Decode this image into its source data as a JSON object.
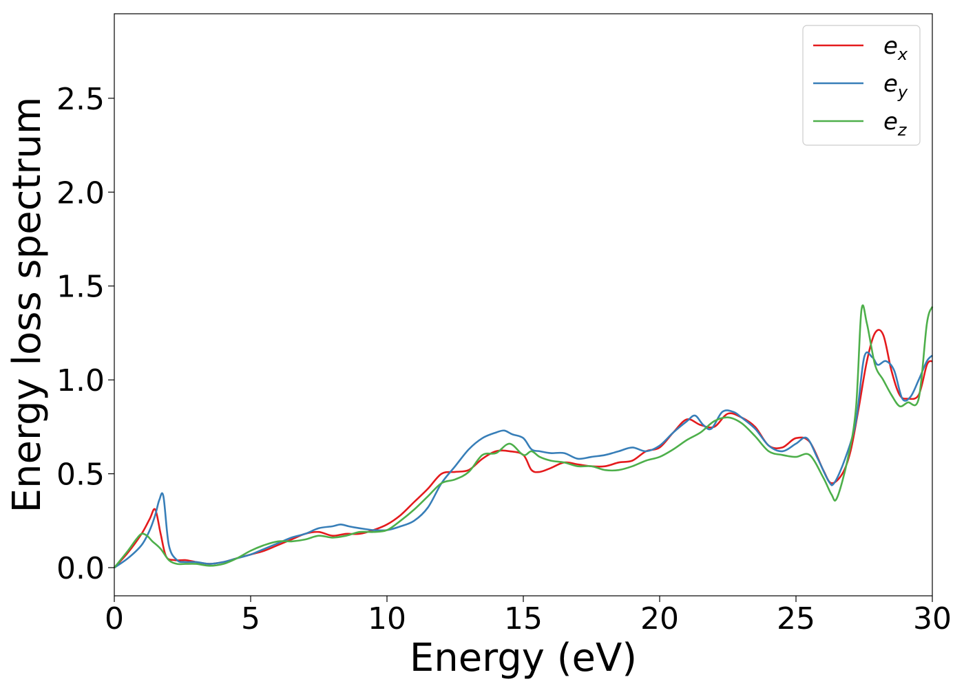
{
  "chart_data": {
    "type": "line",
    "title": "",
    "xlabel": "Energy (eV)",
    "ylabel": "Energy loss spectrum",
    "xlim": [
      0,
      30
    ],
    "ylim": [
      -0.15,
      2.95
    ],
    "xticks": [
      0,
      5,
      10,
      15,
      20,
      25,
      30
    ],
    "xtick_labels": [
      "0",
      "5",
      "10",
      "15",
      "20",
      "25",
      "30"
    ],
    "yticks": [
      0.0,
      0.5,
      1.0,
      1.5,
      2.0,
      2.5
    ],
    "ytick_labels": [
      "0.0",
      "0.5",
      "1.0",
      "1.5",
      "2.0",
      "2.5"
    ],
    "grid": false,
    "legend_position": "top-right",
    "series": [
      {
        "name": "e_x",
        "legend_base": "e",
        "legend_sub": "x",
        "color": "#e41a1c",
        "x": [
          0,
          0.5,
          1,
          1.3,
          1.5,
          1.7,
          1.9,
          2.2,
          2.6,
          3,
          3.5,
          4,
          4.5,
          5,
          5.5,
          6,
          6.5,
          7,
          7.5,
          8,
          8.5,
          9,
          9.5,
          10,
          10.5,
          11,
          11.5,
          12,
          12.5,
          13,
          13.5,
          14,
          14.5,
          15,
          15.3,
          15.6,
          16,
          16.5,
          17,
          17.5,
          18,
          18.5,
          19,
          19.5,
          20,
          20.5,
          21,
          21.5,
          22,
          22.5,
          23,
          23.5,
          24,
          24.5,
          25,
          25.5,
          26,
          26.3,
          26.7,
          27,
          27.3,
          27.6,
          27.9,
          28.2,
          28.5,
          28.8,
          29.1,
          29.5,
          29.8,
          30
        ],
        "y": [
          0,
          0.08,
          0.18,
          0.26,
          0.31,
          0.18,
          0.06,
          0.04,
          0.04,
          0.03,
          0.02,
          0.03,
          0.05,
          0.07,
          0.09,
          0.12,
          0.15,
          0.18,
          0.19,
          0.17,
          0.18,
          0.18,
          0.2,
          0.23,
          0.28,
          0.35,
          0.42,
          0.5,
          0.51,
          0.52,
          0.58,
          0.62,
          0.62,
          0.6,
          0.52,
          0.51,
          0.53,
          0.56,
          0.55,
          0.54,
          0.54,
          0.56,
          0.57,
          0.62,
          0.64,
          0.72,
          0.79,
          0.76,
          0.75,
          0.82,
          0.8,
          0.75,
          0.65,
          0.64,
          0.69,
          0.67,
          0.52,
          0.45,
          0.5,
          0.62,
          0.85,
          1.1,
          1.25,
          1.24,
          1.05,
          0.92,
          0.9,
          0.92,
          1.08,
          1.1
        ]
      },
      {
        "name": "e_y",
        "legend_base": "e",
        "legend_sub": "y",
        "color": "#377eb8",
        "x": [
          0,
          0.5,
          1,
          1.3,
          1.5,
          1.65,
          1.8,
          2,
          2.3,
          2.6,
          3,
          3.5,
          4,
          4.5,
          5,
          5.5,
          6,
          6.5,
          7,
          7.5,
          8,
          8.3,
          8.6,
          9,
          9.5,
          10,
          10.5,
          11,
          11.5,
          12,
          12.5,
          13,
          13.5,
          14,
          14.3,
          14.6,
          15,
          15.3,
          15.6,
          16,
          16.5,
          17,
          17.5,
          18,
          18.5,
          19,
          19.5,
          20,
          20.5,
          21,
          21.3,
          21.6,
          21.9,
          22.3,
          22.7,
          23,
          23.5,
          24,
          24.5,
          25,
          25.4,
          25.8,
          26.2,
          26.4,
          26.8,
          27.2,
          27.5,
          27.8,
          28,
          28.3,
          28.6,
          28.9,
          29.2,
          29.5,
          29.8,
          30
        ],
        "y": [
          0,
          0.05,
          0.12,
          0.2,
          0.28,
          0.36,
          0.38,
          0.12,
          0.04,
          0.03,
          0.03,
          0.02,
          0.03,
          0.05,
          0.07,
          0.1,
          0.13,
          0.16,
          0.18,
          0.21,
          0.22,
          0.23,
          0.22,
          0.21,
          0.2,
          0.2,
          0.22,
          0.25,
          0.32,
          0.45,
          0.54,
          0.63,
          0.69,
          0.72,
          0.73,
          0.71,
          0.69,
          0.63,
          0.62,
          0.61,
          0.61,
          0.58,
          0.59,
          0.6,
          0.62,
          0.64,
          0.62,
          0.65,
          0.72,
          0.78,
          0.81,
          0.76,
          0.74,
          0.83,
          0.83,
          0.8,
          0.74,
          0.65,
          0.62,
          0.66,
          0.69,
          0.58,
          0.46,
          0.45,
          0.58,
          0.78,
          1.12,
          1.12,
          1.08,
          1.1,
          1.05,
          0.9,
          0.91,
          1.0,
          1.1,
          1.13
        ]
      },
      {
        "name": "e_z",
        "legend_base": "e",
        "legend_sub": "z",
        "color": "#4daf4a",
        "x": [
          0,
          0.5,
          0.8,
          1,
          1.2,
          1.4,
          1.7,
          2,
          2.3,
          2.6,
          3,
          3.5,
          4,
          4.5,
          5,
          5.5,
          6,
          6.5,
          7,
          7.5,
          8,
          8.5,
          9,
          9.5,
          10,
          10.5,
          11,
          11.5,
          12,
          12.5,
          13,
          13.5,
          14,
          14.5,
          15,
          15.3,
          15.6,
          16,
          16.5,
          17,
          17.5,
          18,
          18.5,
          19,
          19.5,
          20,
          20.5,
          21,
          21.5,
          22,
          22.5,
          23,
          23.5,
          24,
          24.5,
          25,
          25.5,
          26,
          26.3,
          26.5,
          26.9,
          27.2,
          27.4,
          27.6,
          27.9,
          28.2,
          28.5,
          28.8,
          29.1,
          29.5,
          29.8,
          30
        ],
        "y": [
          0,
          0.09,
          0.15,
          0.18,
          0.17,
          0.14,
          0.1,
          0.04,
          0.02,
          0.02,
          0.02,
          0.01,
          0.02,
          0.05,
          0.09,
          0.12,
          0.14,
          0.14,
          0.15,
          0.17,
          0.16,
          0.17,
          0.19,
          0.19,
          0.2,
          0.25,
          0.31,
          0.38,
          0.45,
          0.47,
          0.51,
          0.6,
          0.61,
          0.66,
          0.6,
          0.62,
          0.59,
          0.57,
          0.56,
          0.54,
          0.54,
          0.52,
          0.52,
          0.54,
          0.57,
          0.59,
          0.63,
          0.68,
          0.72,
          0.78,
          0.8,
          0.77,
          0.7,
          0.62,
          0.6,
          0.59,
          0.6,
          0.48,
          0.39,
          0.37,
          0.58,
          0.85,
          1.37,
          1.3,
          1.08,
          1.0,
          0.92,
          0.86,
          0.88,
          0.9,
          1.3,
          1.39
        ]
      }
    ]
  }
}
